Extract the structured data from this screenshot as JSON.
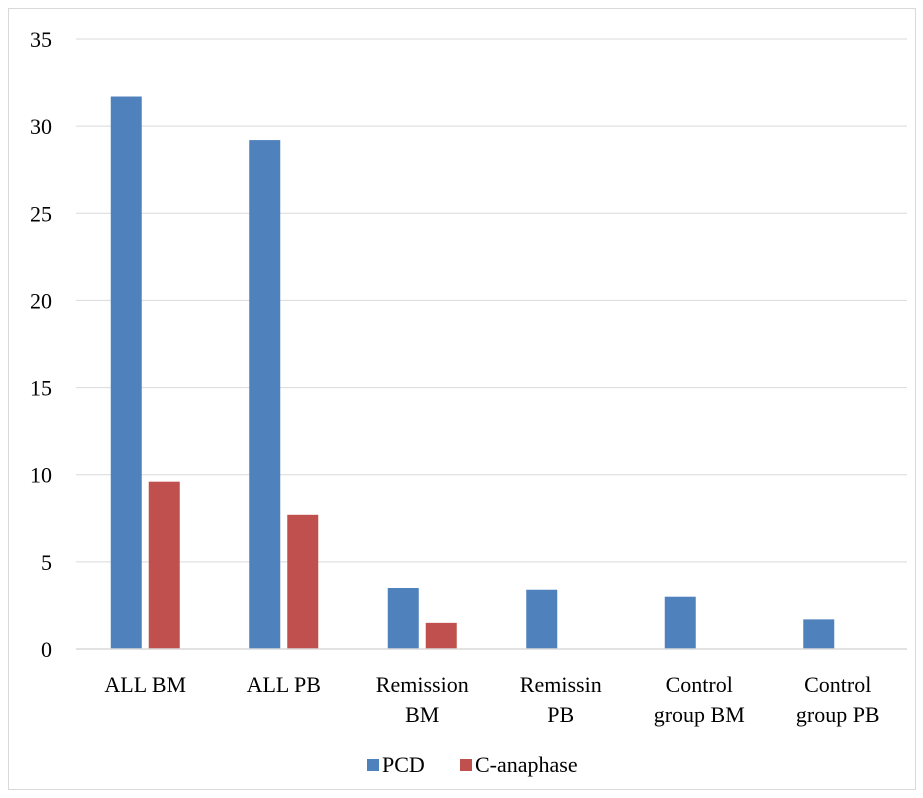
{
  "chart_data": {
    "type": "bar",
    "categories": [
      [
        "ALL BM"
      ],
      [
        "ALL PB"
      ],
      [
        "Remission",
        "BM"
      ],
      [
        "Remissin",
        "PB"
      ],
      [
        "Control",
        "group BM"
      ],
      [
        "Control",
        "group PB"
      ]
    ],
    "series": [
      {
        "name": "PCD",
        "color": "#4f81bd",
        "values": [
          31.7,
          29.2,
          3.5,
          3.4,
          3.0,
          1.7
        ]
      },
      {
        "name": "C-anaphase",
        "color": "#c0504d",
        "values": [
          9.6,
          7.7,
          1.5,
          0,
          0,
          0
        ]
      }
    ],
    "y_ticks": [
      "0",
      "5",
      "10",
      "15",
      "20",
      "25",
      "30",
      "35"
    ],
    "ylim": [
      0,
      35
    ],
    "grid": true,
    "legend": "bottom"
  }
}
